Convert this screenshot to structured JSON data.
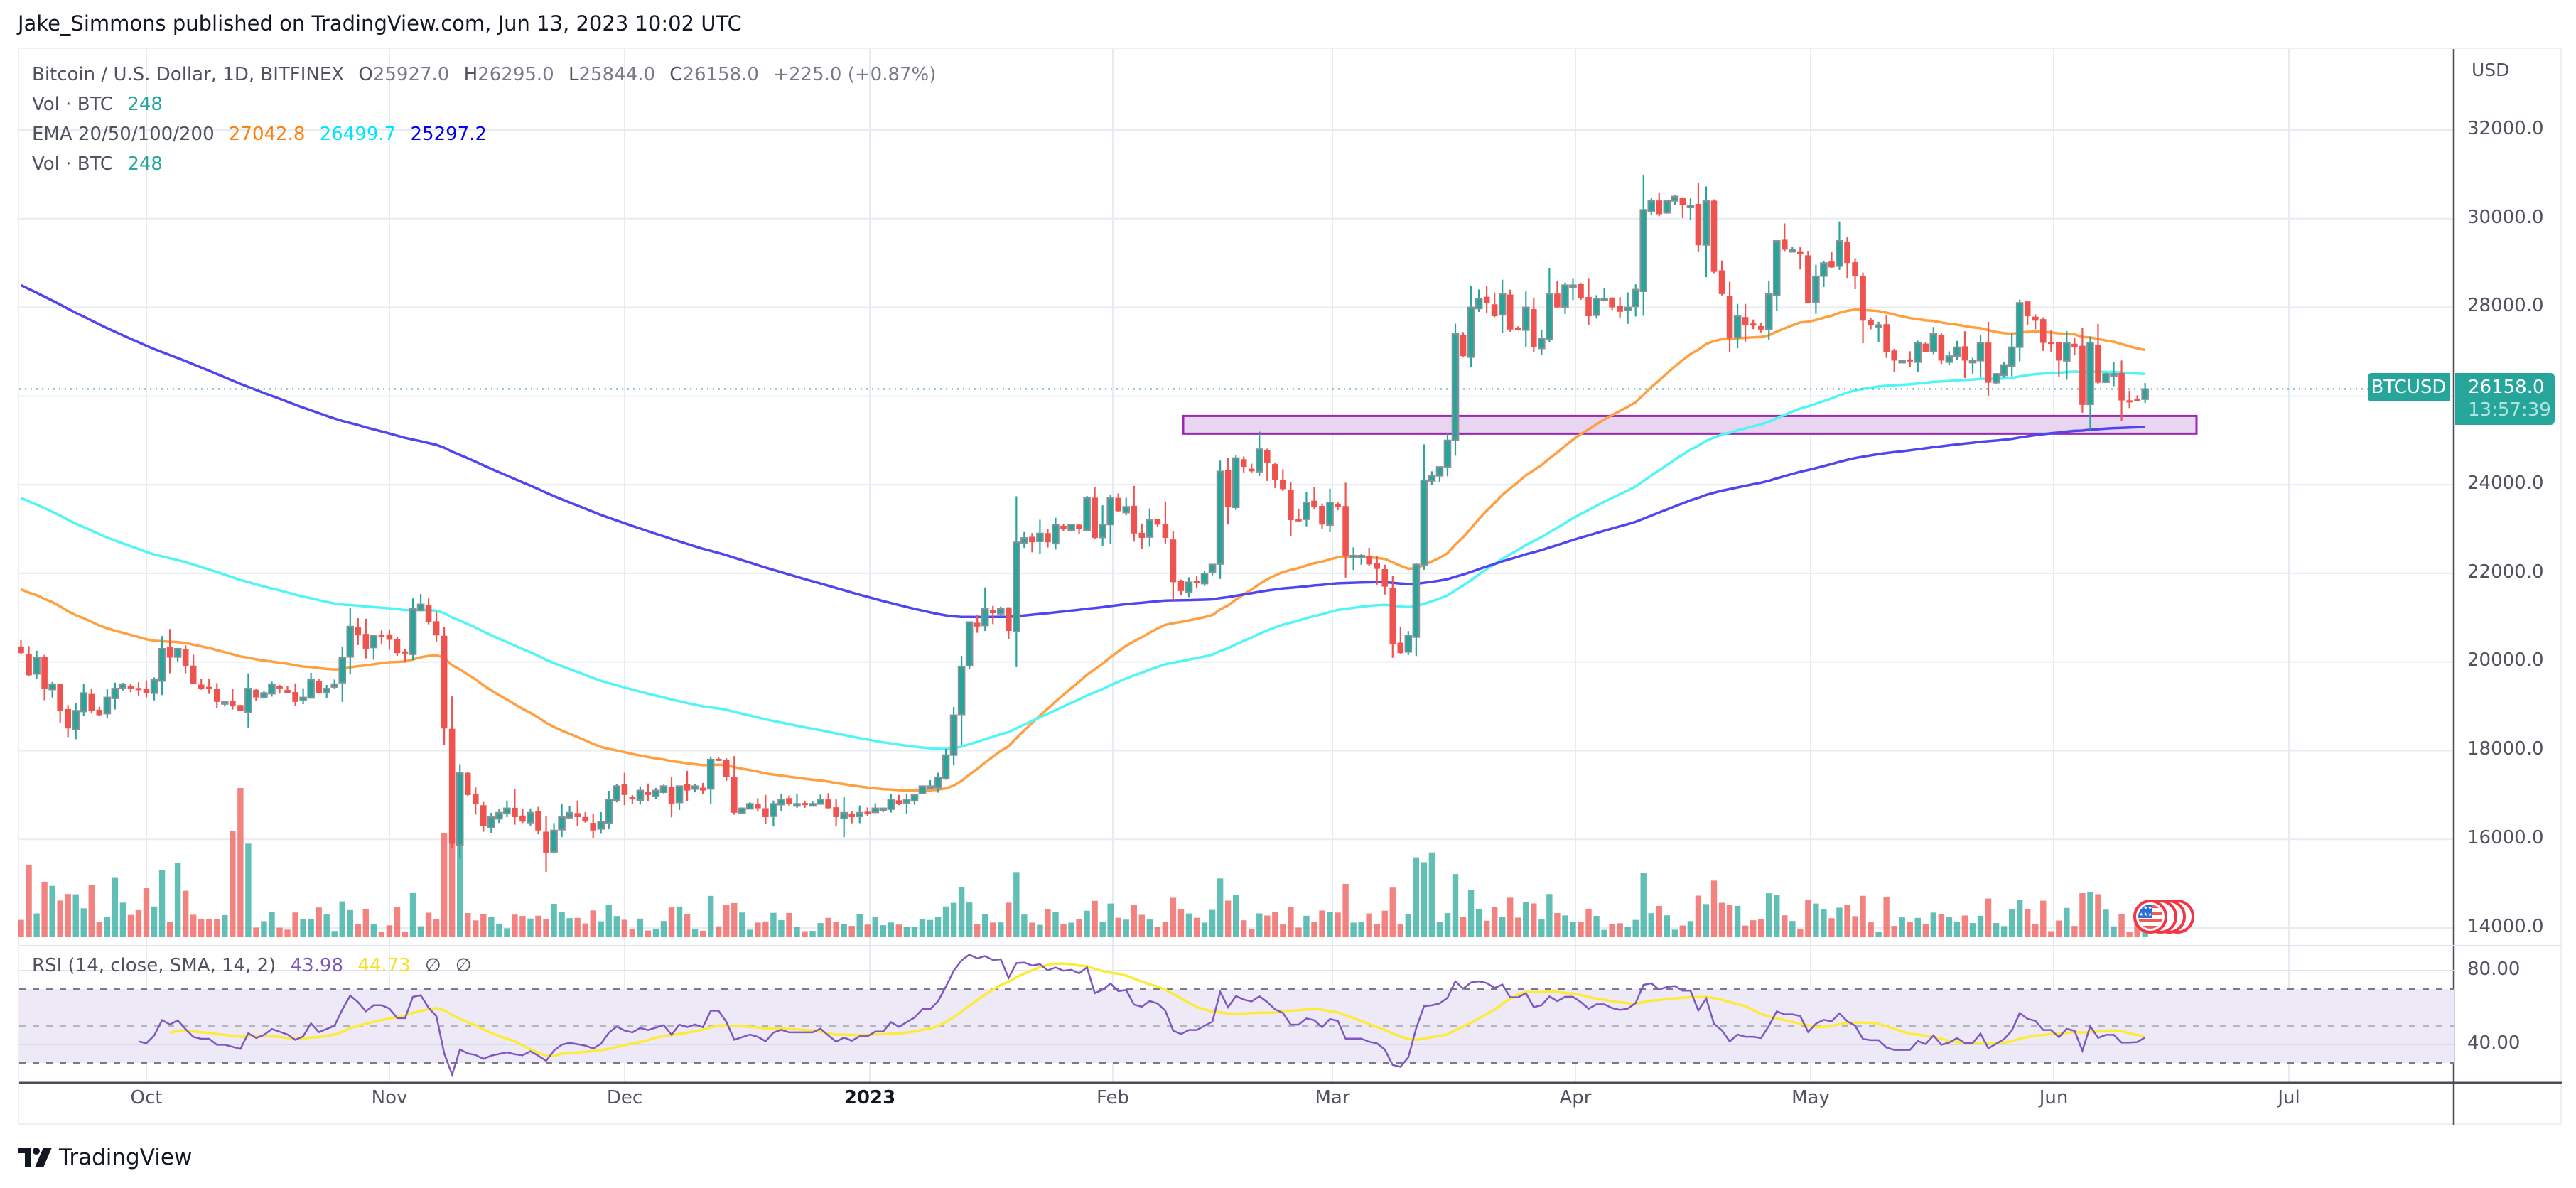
{
  "publisher": "Jake_Simmons published on TradingView.com, Jun 13, 2023 10:02 UTC",
  "legend": {
    "symbol": "Bitcoin / U.S. Dollar, 1D, BITFINEX",
    "open_label": "O",
    "open": "25927.0",
    "high_label": "H",
    "high": "26295.0",
    "low_label": "L",
    "low": "25844.0",
    "close_label": "C",
    "close": "26158.0",
    "change": "+225.0 (+0.87%)",
    "vol1_label": "Vol · BTC",
    "vol1_value": "248",
    "ema_label": "EMA 20/50/100/200",
    "ema_values": [
      "27042.8",
      "26499.7",
      "25297.2"
    ],
    "vol2_label": "Vol · BTC",
    "vol2_value": "248"
  },
  "rsi_legend": {
    "label": "RSI (14, close, SMA, 14, 2)",
    "rsi": "43.98",
    "rsi_ma": "44.73",
    "na1": "∅",
    "na2": "∅"
  },
  "price_axis": {
    "currency": "USD",
    "ticks": [
      "32000.0",
      "30000.0",
      "28000.0",
      "26000.0",
      "24000.0",
      "22000.0",
      "20000.0",
      "18000.0",
      "16000.0",
      "14000.0"
    ],
    "rsi_ticks": [
      "80.00",
      "40.00"
    ]
  },
  "last_price": {
    "symbol": "BTCUSD",
    "price": "26158.0",
    "countdown": "13:57:39"
  },
  "time_axis": [
    "Oct",
    "Nov",
    "Dec",
    "2023",
    "Feb",
    "Mar",
    "Apr",
    "May",
    "Jun",
    "Jul"
  ],
  "events": {
    "icon": "us-flag-economic-event-icon",
    "count": 4
  },
  "logo": "TradingView",
  "colors": {
    "up": "#26a69a",
    "down": "#ef5350",
    "wick_border": "#8d8f96",
    "ema50": "#ff9f40",
    "ema100": "#52f5f5",
    "ema200": "#5046f0",
    "rsi": "#7e57c2",
    "rsi_ma": "#fdeb3a",
    "zone_fill": "#e8d5f0",
    "zone_border": "#9c27b0"
  },
  "chart_data": {
    "type": "candlestick",
    "title": "Bitcoin / U.S. Dollar, 1D, BITFINEX",
    "ylabel": "USD",
    "ylim": [
      13800,
      32800
    ],
    "start_date": "2022-09-15",
    "grid": true,
    "closes": [
      20200,
      19700,
      20100,
      19400,
      19500,
      18900,
      18500,
      18900,
      19300,
      18900,
      18800,
      19200,
      19400,
      19500,
      19400,
      19400,
      19300,
      19600,
      20300,
      20100,
      20300,
      19900,
      19500,
      19400,
      19400,
      19100,
      19100,
      19000,
      18900,
      19400,
      19200,
      19300,
      19500,
      19400,
      19300,
      19100,
      19200,
      19600,
      19300,
      19400,
      19500,
      20100,
      20800,
      20600,
      20300,
      20600,
      20600,
      20500,
      20200,
      20200,
      21200,
      21300,
      20900,
      20600,
      18500,
      15900,
      17500,
      17000,
      16800,
      16300,
      16500,
      16600,
      16700,
      16500,
      16400,
      16600,
      16200,
      15700,
      16200,
      16500,
      16600,
      16500,
      16400,
      16200,
      16400,
      16900,
      17200,
      17000,
      16900,
      17100,
      17000,
      17100,
      17200,
      16800,
      17200,
      17100,
      17200,
      17100,
      17800,
      17800,
      17400,
      16600,
      16700,
      16800,
      16700,
      16500,
      16800,
      16900,
      16800,
      16800,
      16800,
      16800,
      16900,
      16700,
      16500,
      16600,
      16500,
      16600,
      16600,
      16700,
      16700,
      16900,
      16800,
      16900,
      17000,
      17200,
      17200,
      17400,
      17900,
      18800,
      19900,
      20900,
      20800,
      21200,
      21100,
      21200,
      20700,
      22700,
      22800,
      22700,
      22900,
      22700,
      23100,
      23000,
      23100,
      23000,
      23700,
      22800,
      23100,
      23700,
      23400,
      23500,
      22900,
      22800,
      23200,
      23100,
      22800,
      21800,
      21600,
      21800,
      21800,
      22000,
      22200,
      24300,
      23500,
      24600,
      24400,
      24300,
      24800,
      24500,
      24100,
      23900,
      23200,
      23200,
      23600,
      23500,
      23100,
      23600,
      23500,
      22400,
      22400,
      22400,
      22200,
      22100,
      21700,
      20400,
      20200,
      20600,
      22200,
      24100,
      24200,
      24400,
      25000,
      27400,
      26900,
      28000,
      28200,
      28100,
      27800,
      28300,
      27500,
      27500,
      28000,
      27100,
      27300,
      28300,
      28000,
      28500,
      28500,
      28200,
      27800,
      28200,
      28200,
      28000,
      27900,
      28000,
      28400,
      30200,
      30400,
      30100,
      30400,
      30500,
      30300,
      30300,
      29400,
      30400,
      28800,
      28300,
      27300,
      27800,
      27600,
      27600,
      27500,
      28300,
      29500,
      29300,
      29300,
      29200,
      28100,
      28700,
      29000,
      28900,
      29500,
      29000,
      28700,
      27700,
      27600,
      27600,
      27000,
      26800,
      26800,
      26800,
      27200,
      27000,
      27400,
      26800,
      26900,
      27100,
      26800,
      26800,
      27200,
      26300,
      26500,
      26700,
      27100,
      28100,
      27800,
      27700,
      27200,
      27200,
      26800,
      27200,
      27100,
      25800,
      27200,
      26300,
      26500,
      26500,
      25900,
      25900,
      25927,
      26158
    ],
    "last_candle": {
      "date": "2023-06-13",
      "open": 25927.0,
      "high": 26295.0,
      "low": 25844.0,
      "close": 26158.0
    },
    "ema_seeds": {
      "ema50": 21640,
      "ema100": 23700,
      "ema200": 28500
    },
    "ema_final": {
      "ema50": 27042.8,
      "ema100": 26499.7,
      "ema200": 25297.2
    },
    "support_zone": {
      "from_date": "2023-02-15",
      "to_date": "2023-06-20",
      "top": 25550,
      "bottom": 25150
    },
    "rsi": {
      "period": 14,
      "ma_period": 14,
      "bands": [
        70,
        50,
        30
      ],
      "axis_ticks": [
        80,
        40
      ],
      "last": 43.98,
      "last_ma": 44.73
    },
    "volume_spikes": [
      {
        "date": "2022-10-13",
        "rel": 1.0
      },
      {
        "date": "2022-11-09",
        "rel": 0.7
      },
      {
        "date": "2023-03-13",
        "rel": 0.45
      }
    ]
  }
}
